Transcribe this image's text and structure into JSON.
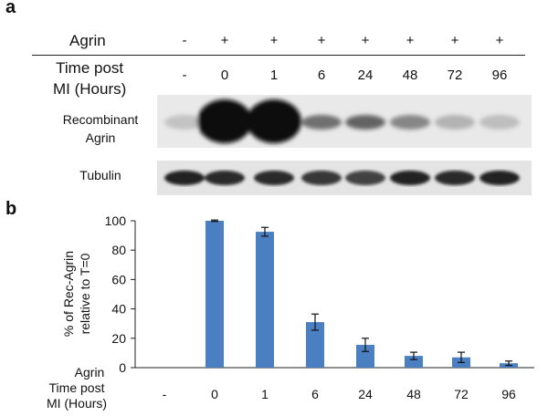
{
  "panels": {
    "a": "a",
    "b": "b"
  },
  "table": {
    "agrin_label": "Agrin",
    "time_label_line1": "Time post",
    "time_label_line2": "MI (Hours)",
    "agrin": [
      "-",
      "+",
      "+",
      "+",
      "+",
      "+",
      "+",
      "+"
    ],
    "times": [
      "-",
      "0",
      "1",
      "6",
      "24",
      "48",
      "72",
      "96"
    ]
  },
  "blots": {
    "recombinant_line1": "Recombinant",
    "recombinant_line2": "Agrin",
    "tubulin": "Tubulin",
    "recombinant_intensity": [
      0.18,
      1.0,
      1.0,
      0.55,
      0.6,
      0.45,
      0.25,
      0.2
    ],
    "tubulin_intensity": [
      0.9,
      0.85,
      0.85,
      0.8,
      0.75,
      0.9,
      0.85,
      0.9
    ]
  },
  "chart_data": {
    "type": "bar",
    "categories": [
      "-",
      "0",
      "1",
      "6",
      "24",
      "48",
      "72",
      "96"
    ],
    "values": [
      0,
      100,
      92.5,
      31,
      15.5,
      8,
      7,
      3
    ],
    "errors": [
      0,
      0.5,
      3,
      5.5,
      4.5,
      2.5,
      3.5,
      1.5
    ],
    "ylabel_line1": "% of Rec-Agrin",
    "ylabel_line2": "relative to T=0",
    "ylim": [
      0,
      100
    ],
    "yticks": [
      0,
      20,
      40,
      60,
      80,
      100
    ],
    "color": "#4a7fc1",
    "x_row_label": "Agrin",
    "x_time_label_line1": "Time post",
    "x_time_label_line2": "MI (Hours)"
  }
}
